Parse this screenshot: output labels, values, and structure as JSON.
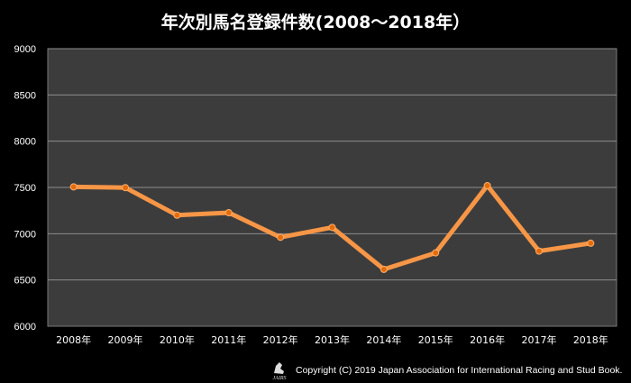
{
  "chart_data": {
    "type": "line",
    "title": "年次別馬名登録件数(2008～2018年）",
    "categories": [
      "2008年",
      "2009年",
      "2010年",
      "2011年",
      "2012年",
      "2013年",
      "2014年",
      "2015年",
      "2016年",
      "2017年",
      "2018年"
    ],
    "series": [
      {
        "name": "馬名登録件数",
        "values": [
          7506,
          7498,
          7200,
          7227,
          6961,
          7068,
          6615,
          6793,
          7520,
          6812,
          6897
        ]
      }
    ],
    "ylim": [
      6000,
      9000
    ],
    "yticks": [
      6000,
      6500,
      7000,
      7500,
      8000,
      8500,
      9000
    ],
    "grid": true,
    "colors": {
      "line": "#f79646",
      "marker": "#e46c0a",
      "plot_bg": "#3c3c3c",
      "grid": "#8c8c8c"
    }
  },
  "footer": {
    "copyright": "Copyright (C) 2019  Japan Association for International Racing and Stud Book.",
    "logo_text": "JAIRS"
  }
}
